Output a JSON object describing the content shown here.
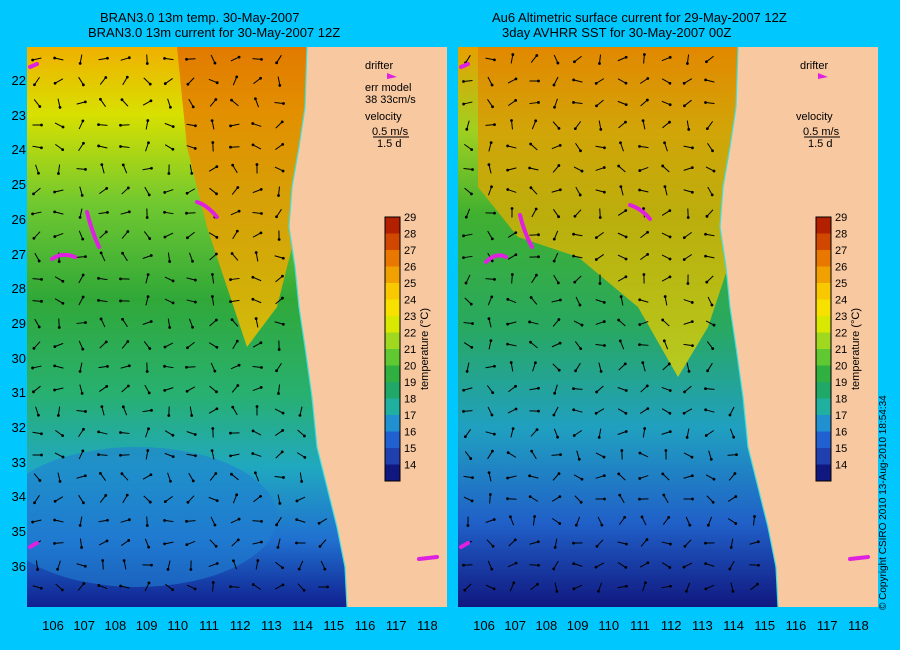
{
  "left": {
    "title_line1": "BRAN3.0 13m temp. 30-May-2007",
    "title_line2": "BRAN3.0 13m current for 30-May-2007 12Z",
    "drifter_label": "drifter",
    "err_label": "err model",
    "err_value": "38 33cm/s",
    "velocity_label": "velocity",
    "velocity_scale": "0.5 m/s",
    "velocity_days": "1.5 d"
  },
  "right": {
    "title_line1": "Au6 Altimetric surface current for 29-May-2007 12Z",
    "title_line2": "3day AVHRR SST for 30-May-2007 00Z",
    "drifter_label": "drifter",
    "velocity_label": "velocity",
    "velocity_scale": "0.5 m/s",
    "velocity_days": "1.5 d"
  },
  "colorbar": {
    "label": "temperature (°C)",
    "ticks": [
      "29",
      "28",
      "27",
      "26",
      "25",
      "24",
      "23",
      "22",
      "21",
      "20",
      "19",
      "18",
      "17",
      "16",
      "15",
      "14"
    ],
    "colors": [
      "#b32000",
      "#d04800",
      "#e87800",
      "#f0a000",
      "#f8c800",
      "#f8e000",
      "#d8e800",
      "#a0d820",
      "#60c830",
      "#30b040",
      "#20a868",
      "#20b0a0",
      "#2090d0",
      "#2060d0",
      "#2040b0",
      "#101880"
    ]
  },
  "y_ticks": [
    "22",
    "23",
    "24",
    "25",
    "26",
    "27",
    "28",
    "29",
    "30",
    "31",
    "32",
    "33",
    "34",
    "35",
    "36"
  ],
  "x_ticks": [
    "106",
    "107",
    "108",
    "109",
    "110",
    "111",
    "112",
    "113",
    "114",
    "115",
    "116",
    "117",
    "118"
  ],
  "copyright": "© Copyright CSIRO 2010 13-Aug-2010 18:54:34",
  "colors": {
    "background": "#00c8ff",
    "land": "#f8c8a0",
    "drifter": "#e020e0"
  }
}
